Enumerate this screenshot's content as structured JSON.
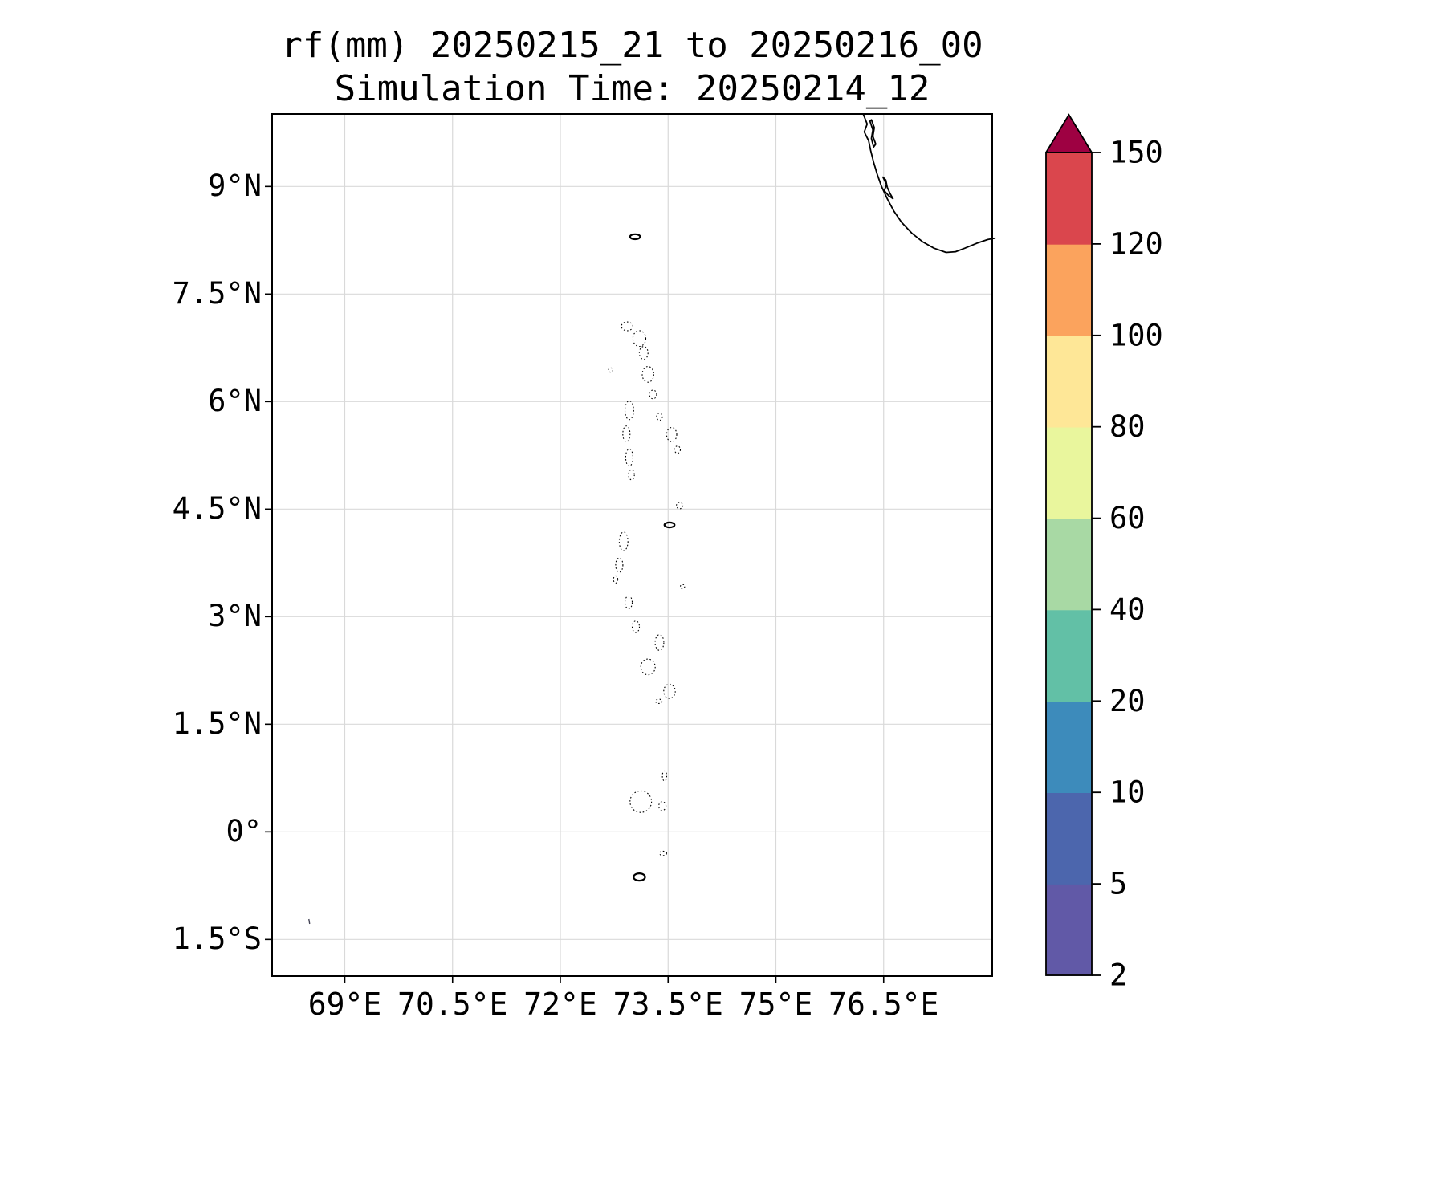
{
  "title": {
    "line1": "rf(mm) 20250215_21 to 20250216_00",
    "line2": "Simulation Time: 20250214_12"
  },
  "chart_data": {
    "type": "heatmap",
    "subtype": "geographic filled-contour rainfall map",
    "title": "rf(mm) 20250215_21 to 20250216_00",
    "subtitle": "Simulation Time: 20250214_12",
    "variable": "rf",
    "units": "mm",
    "accumulation_period": "20250215_21 to 20250216_00",
    "simulation_time": "20250214_12",
    "grid": true,
    "grid_color": "#d9d9d9",
    "extent": {
      "lon_min": 68,
      "lon_max": 78,
      "lat_min": -2,
      "lat_max": 10
    },
    "x_ticks": [
      {
        "value": 69,
        "label": "69°E"
      },
      {
        "value": 70.5,
        "label": "70.5°E"
      },
      {
        "value": 72,
        "label": "72°E"
      },
      {
        "value": 73.5,
        "label": "73.5°E"
      },
      {
        "value": 75,
        "label": "75°E"
      },
      {
        "value": 76.5,
        "label": "76.5°E"
      }
    ],
    "y_ticks": [
      {
        "value": 9,
        "label": "9°N"
      },
      {
        "value": 7.5,
        "label": "7.5°N"
      },
      {
        "value": 6,
        "label": "6°N"
      },
      {
        "value": 4.5,
        "label": "4.5°N"
      },
      {
        "value": 3,
        "label": "3°N"
      },
      {
        "value": 1.5,
        "label": "1.5°N"
      },
      {
        "value": 0,
        "label": "0°"
      },
      {
        "value": -1.5,
        "label": "1.5°S"
      }
    ],
    "data_values": [],
    "note": "No rainfall at or above the 2 mm minimum contour level is plotted; the map shows only base-map coastlines (southwest India coast, Maldives/Lakshadweep atoll outlines).",
    "colorbar": {
      "position": "right",
      "levels": [
        2,
        5,
        10,
        20,
        40,
        60,
        80,
        100,
        120,
        150
      ],
      "labels": [
        "2",
        "5",
        "10",
        "20",
        "40",
        "60",
        "80",
        "100",
        "120",
        "150"
      ],
      "colors": [
        "#6159a7",
        "#4c66ad",
        "#3d8bbb",
        "#62c0a6",
        "#a8d9a4",
        "#e9f69d",
        "#fee797",
        "#fba35d",
        "#da464d"
      ],
      "extend_over_color": "#9e0142"
    },
    "coastlines": [
      {
        "name": "sw-india-coast",
        "points": [
          [
            76.22,
            10.0
          ],
          [
            76.27,
            9.87
          ],
          [
            76.23,
            9.76
          ],
          [
            76.29,
            9.64
          ],
          [
            76.32,
            9.5
          ],
          [
            76.36,
            9.34
          ],
          [
            76.41,
            9.17
          ],
          [
            76.47,
            9.0
          ],
          [
            76.55,
            8.83
          ],
          [
            76.64,
            8.66
          ],
          [
            76.75,
            8.5
          ],
          [
            76.89,
            8.35
          ],
          [
            77.04,
            8.23
          ],
          [
            77.2,
            8.14
          ],
          [
            77.37,
            8.08
          ],
          [
            77.5,
            8.09
          ],
          [
            77.63,
            8.14
          ],
          [
            77.8,
            8.21
          ],
          [
            77.95,
            8.26
          ],
          [
            78.05,
            8.28
          ]
        ]
      },
      {
        "name": "backwater-lagoon-north",
        "points": [
          [
            76.33,
            9.93
          ],
          [
            76.37,
            9.82
          ],
          [
            76.35,
            9.7
          ],
          [
            76.39,
            9.59
          ],
          [
            76.36,
            9.55
          ],
          [
            76.33,
            9.67
          ],
          [
            76.35,
            9.79
          ],
          [
            76.31,
            9.91
          ],
          [
            76.33,
            9.93
          ]
        ]
      },
      {
        "name": "backwater-lagoon-south",
        "points": [
          [
            76.49,
            9.13
          ],
          [
            76.54,
            9.03
          ],
          [
            76.51,
            8.94
          ],
          [
            76.57,
            8.87
          ],
          [
            76.63,
            8.83
          ],
          [
            76.59,
            8.9
          ],
          [
            76.55,
            8.99
          ],
          [
            76.53,
            9.09
          ],
          [
            76.49,
            9.13
          ]
        ]
      }
    ],
    "atolls": [
      {
        "lon": 73.04,
        "lat": 8.3,
        "rx": 0.07,
        "ry": 0.035,
        "bold": true
      },
      {
        "lon": 72.93,
        "lat": 7.05,
        "rx": 0.08,
        "ry": 0.06
      },
      {
        "lon": 73.1,
        "lat": 6.88,
        "rx": 0.09,
        "ry": 0.11
      },
      {
        "lon": 73.16,
        "lat": 6.68,
        "rx": 0.06,
        "ry": 0.09
      },
      {
        "lon": 72.7,
        "lat": 6.44,
        "rx": 0.03,
        "ry": 0.03
      },
      {
        "lon": 73.22,
        "lat": 6.38,
        "rx": 0.08,
        "ry": 0.11
      },
      {
        "lon": 73.29,
        "lat": 6.1,
        "rx": 0.05,
        "ry": 0.06
      },
      {
        "lon": 72.96,
        "lat": 5.88,
        "rx": 0.06,
        "ry": 0.13
      },
      {
        "lon": 73.38,
        "lat": 5.79,
        "rx": 0.04,
        "ry": 0.05
      },
      {
        "lon": 73.55,
        "lat": 5.54,
        "rx": 0.07,
        "ry": 0.1
      },
      {
        "lon": 73.63,
        "lat": 5.33,
        "rx": 0.04,
        "ry": 0.05
      },
      {
        "lon": 72.92,
        "lat": 5.55,
        "rx": 0.05,
        "ry": 0.11
      },
      {
        "lon": 72.96,
        "lat": 5.22,
        "rx": 0.05,
        "ry": 0.12
      },
      {
        "lon": 72.99,
        "lat": 4.98,
        "rx": 0.04,
        "ry": 0.07
      },
      {
        "lon": 73.66,
        "lat": 4.55,
        "rx": 0.045,
        "ry": 0.045
      },
      {
        "lon": 73.52,
        "lat": 4.28,
        "rx": 0.07,
        "ry": 0.035,
        "bold": true
      },
      {
        "lon": 72.88,
        "lat": 4.05,
        "rx": 0.06,
        "ry": 0.13
      },
      {
        "lon": 72.82,
        "lat": 3.72,
        "rx": 0.05,
        "ry": 0.1
      },
      {
        "lon": 72.77,
        "lat": 3.52,
        "rx": 0.03,
        "ry": 0.05
      },
      {
        "lon": 72.95,
        "lat": 3.2,
        "rx": 0.05,
        "ry": 0.09
      },
      {
        "lon": 73.7,
        "lat": 3.42,
        "rx": 0.03,
        "ry": 0.03
      },
      {
        "lon": 73.05,
        "lat": 2.86,
        "rx": 0.05,
        "ry": 0.08
      },
      {
        "lon": 73.38,
        "lat": 2.64,
        "rx": 0.06,
        "ry": 0.11
      },
      {
        "lon": 73.22,
        "lat": 2.3,
        "rx": 0.1,
        "ry": 0.11
      },
      {
        "lon": 73.52,
        "lat": 1.96,
        "rx": 0.08,
        "ry": 0.1
      },
      {
        "lon": 73.37,
        "lat": 1.82,
        "rx": 0.045,
        "ry": 0.03
      },
      {
        "lon": 73.45,
        "lat": 0.78,
        "rx": 0.03,
        "ry": 0.07
      },
      {
        "lon": 73.12,
        "lat": 0.42,
        "rx": 0.15,
        "ry": 0.15
      },
      {
        "lon": 73.42,
        "lat": 0.36,
        "rx": 0.05,
        "ry": 0.06
      },
      {
        "lon": 73.43,
        "lat": -0.3,
        "rx": 0.05,
        "ry": 0.03
      },
      {
        "lon": 73.1,
        "lat": -0.63,
        "rx": 0.08,
        "ry": 0.05,
        "bold": true
      }
    ],
    "islets": [
      {
        "lon": 68.5,
        "lat": -1.25
      }
    ]
  }
}
